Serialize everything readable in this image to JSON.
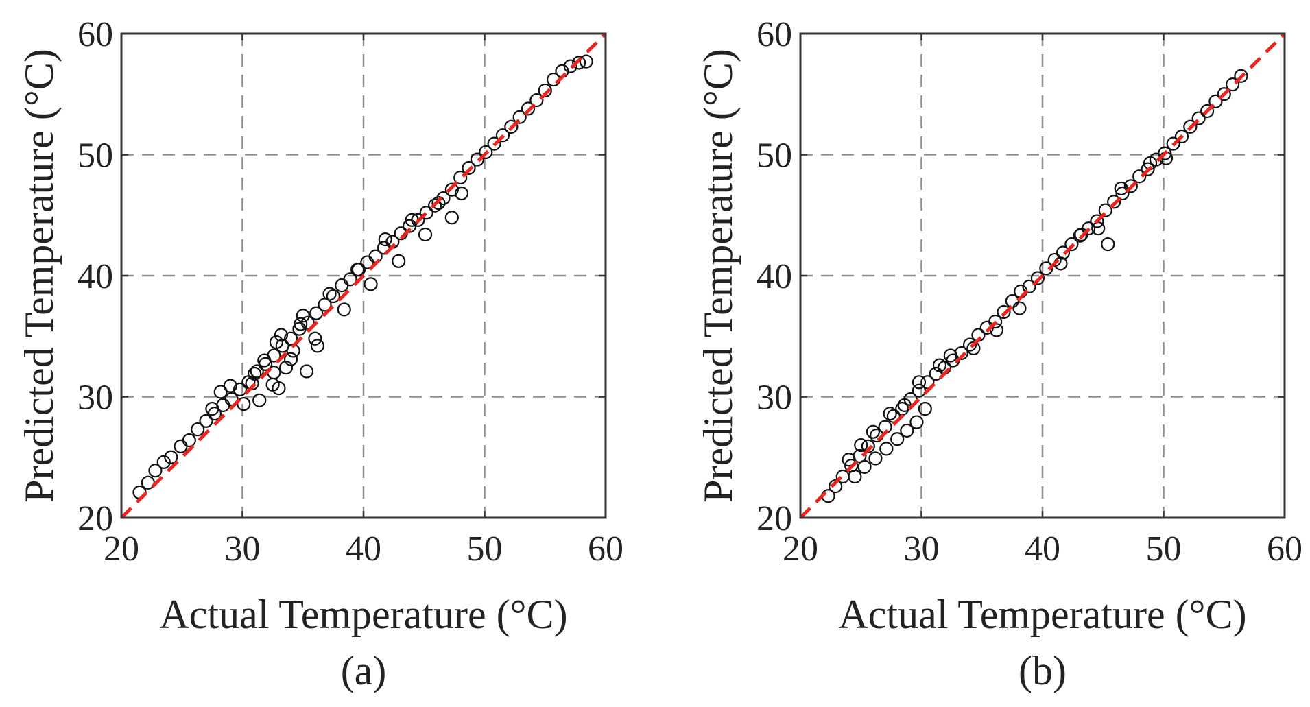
{
  "chart_data": [
    {
      "type": "scatter",
      "caption": "(a)",
      "xlabel": "Actual Temperature (°C)",
      "ylabel": "Predicted Temperature (°C)",
      "xlim": [
        20,
        60
      ],
      "ylim": [
        20,
        60
      ],
      "xticks": [
        20,
        30,
        40,
        50,
        60
      ],
      "yticks": [
        20,
        30,
        40,
        50,
        60
      ],
      "grid": true,
      "marker": "open-circle",
      "reference_line": {
        "name": "y = x",
        "style": "dashed",
        "color": "#e8251f",
        "x": [
          20,
          60
        ],
        "y": [
          20,
          60
        ]
      },
      "series": [
        {
          "name": "predictions",
          "x": [
            21.5,
            22.2,
            22.8,
            23.5,
            24.1,
            24.9,
            25.6,
            26.3,
            27.0,
            27.7,
            28.4,
            29.1,
            29.8,
            30.5,
            31.2,
            31.9,
            32.6,
            33.3,
            34.0,
            34.7,
            35.4,
            36.1,
            36.8,
            37.5,
            38.2,
            38.9,
            39.6,
            40.3,
            41.0,
            41.7,
            42.4,
            43.1,
            43.8,
            44.5,
            45.2,
            45.9,
            46.6,
            47.3,
            48.0,
            48.7,
            49.4,
            50.1,
            50.8,
            51.5,
            52.2,
            52.9,
            53.6,
            54.3,
            55.0,
            55.7,
            56.4,
            57.1,
            57.8,
            58.4,
            27.5,
            28.2,
            29.0,
            30.1,
            31.0,
            31.8,
            32.5,
            33.2,
            34.0,
            35.0,
            36.0,
            37.2,
            38.4,
            39.5,
            40.6,
            41.8,
            42.9,
            44.0,
            45.1,
            46.2,
            47.3,
            48.1,
            32.6,
            33.0,
            34.2,
            34.8,
            35.3,
            36.2,
            30.8,
            31.4,
            32.8,
            33.6
          ],
          "y": [
            22.1,
            22.9,
            23.9,
            24.6,
            25.0,
            25.9,
            26.4,
            27.3,
            28.0,
            28.6,
            29.3,
            29.8,
            30.6,
            31.2,
            32.1,
            32.7,
            33.4,
            34.2,
            34.8,
            35.6,
            36.1,
            36.9,
            37.6,
            38.3,
            39.2,
            39.7,
            40.5,
            41.1,
            41.6,
            42.3,
            42.8,
            43.5,
            44.1,
            44.6,
            45.2,
            45.8,
            46.4,
            47.1,
            48.1,
            48.9,
            49.6,
            50.2,
            50.9,
            51.6,
            52.3,
            53.1,
            53.8,
            54.5,
            55.3,
            56.2,
            56.9,
            57.3,
            57.6,
            57.7,
            29.0,
            30.4,
            30.9,
            29.4,
            31.9,
            33.0,
            31.0,
            35.1,
            33.1,
            36.7,
            34.8,
            38.5,
            37.2,
            40.5,
            39.3,
            43.0,
            41.2,
            44.6,
            43.4,
            46.0,
            44.8,
            46.8,
            32.0,
            30.7,
            33.8,
            36.0,
            32.1,
            34.2,
            31.1,
            29.7,
            34.5,
            32.4
          ]
        }
      ]
    },
    {
      "type": "scatter",
      "caption": "(b)",
      "xlabel": "Actual Temperature (°C)",
      "ylabel": "Predicted Temperature (°C)",
      "xlim": [
        20,
        60
      ],
      "ylim": [
        20,
        60
      ],
      "xticks": [
        20,
        30,
        40,
        50,
        60
      ],
      "yticks": [
        20,
        30,
        40,
        50,
        60
      ],
      "grid": true,
      "marker": "open-circle",
      "reference_line": {
        "name": "y = x",
        "style": "dashed",
        "color": "#e8251f",
        "x": [
          20,
          60
        ],
        "y": [
          20,
          60
        ]
      },
      "series": [
        {
          "name": "predictions",
          "x": [
            22.3,
            22.9,
            23.5,
            24.2,
            24.9,
            25.6,
            26.3,
            27.0,
            27.7,
            28.4,
            29.1,
            29.8,
            30.5,
            31.2,
            31.9,
            32.6,
            33.3,
            34.0,
            34.7,
            35.4,
            36.1,
            36.8,
            37.5,
            38.2,
            38.9,
            39.6,
            40.3,
            41.0,
            41.7,
            42.4,
            43.1,
            43.8,
            44.5,
            45.2,
            45.9,
            46.6,
            47.3,
            48.0,
            48.7,
            49.4,
            50.1,
            50.8,
            51.5,
            52.2,
            52.9,
            53.6,
            54.3,
            55.0,
            55.7,
            56.4,
            24.5,
            25.3,
            26.2,
            27.1,
            28.0,
            28.8,
            29.6,
            30.3,
            24.0,
            25.0,
            26.0,
            27.4,
            28.6,
            29.8,
            31.5,
            32.4,
            34.3,
            36.2,
            38.1,
            41.5,
            43.2,
            44.6,
            45.4,
            46.5,
            48.9,
            50.2
          ],
          "y": [
            21.8,
            22.6,
            23.4,
            24.3,
            25.1,
            25.9,
            26.8,
            27.5,
            28.4,
            29.0,
            29.8,
            30.5,
            31.2,
            31.9,
            32.4,
            33.0,
            33.6,
            34.3,
            35.1,
            35.7,
            36.2,
            37.0,
            37.9,
            38.7,
            39.1,
            39.8,
            40.6,
            41.3,
            41.9,
            42.6,
            43.3,
            43.9,
            44.5,
            45.4,
            46.1,
            46.8,
            47.4,
            48.2,
            48.8,
            49.6,
            50.1,
            50.9,
            51.5,
            52.3,
            53.0,
            53.6,
            54.4,
            55.0,
            55.8,
            56.5,
            23.4,
            24.2,
            24.9,
            25.7,
            26.5,
            27.2,
            27.9,
            29.0,
            24.8,
            26.0,
            27.1,
            28.6,
            29.3,
            31.2,
            32.6,
            33.4,
            34.0,
            35.5,
            37.3,
            41.0,
            43.4,
            43.9,
            42.6,
            47.2,
            49.3,
            49.7
          ]
        }
      ]
    }
  ]
}
